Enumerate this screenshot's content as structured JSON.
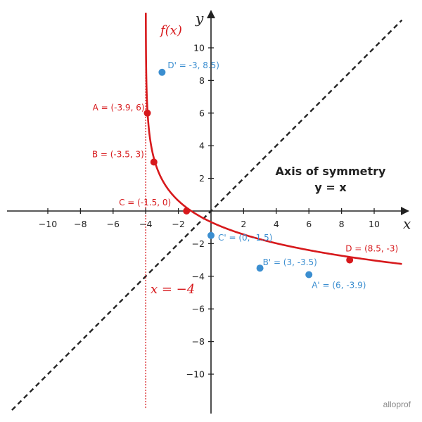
{
  "chart_data": {
    "type": "line",
    "xlabel": "x",
    "ylabel": "y",
    "xlim": [
      -12.2,
      11.7
    ],
    "ylim": [
      -12.0,
      11.9
    ],
    "x_ticks": [
      -10,
      -8,
      -6,
      -4,
      -2,
      2,
      4,
      6,
      8,
      10
    ],
    "y_ticks": [
      -10,
      -8,
      -6,
      -4,
      -2,
      2,
      4,
      6,
      8,
      10
    ],
    "grid": false,
    "function": {
      "label": "f(x)",
      "color": "#d7191c",
      "asymptote_x": -4,
      "asymptote_label": "x = −4"
    },
    "symmetry": {
      "title": "Axis of symmetry",
      "equation": "y = x",
      "color": "#222222"
    },
    "points": [
      {
        "x": -3.9,
        "y": 6,
        "label": "A = (-3.9, 6)",
        "color": "#d7191c"
      },
      {
        "x": -3.5,
        "y": 3,
        "label": "B = (-3.5, 3)",
        "color": "#d7191c"
      },
      {
        "x": -1.5,
        "y": 0,
        "label": "C = (-1.5, 0)",
        "color": "#d7191c"
      },
      {
        "x": 8.5,
        "y": -3,
        "label": "D = (8.5, -3)",
        "color": "#d7191c"
      },
      {
        "x": 6,
        "y": -3.9,
        "label": "A' = (6, -3.9)",
        "color": "#3b8ed0"
      },
      {
        "x": 3,
        "y": -3.5,
        "label": "B' = (3, -3.5)",
        "color": "#3b8ed0"
      },
      {
        "x": 0,
        "y": -1.5,
        "label": "C' = (0, -1.5)",
        "color": "#3b8ed0"
      },
      {
        "x": -3,
        "y": 8.5,
        "label": "D' = -3, 8.5)",
        "color": "#3b8ed0"
      }
    ]
  },
  "brand": "alloprof"
}
